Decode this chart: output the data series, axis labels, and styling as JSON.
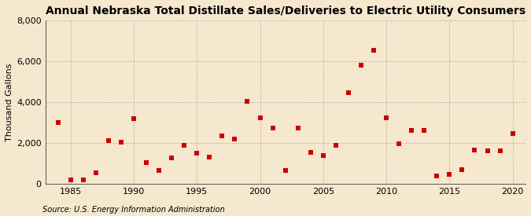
{
  "title": "Annual Nebraska Total Distillate Sales/Deliveries to Electric Utility Consumers",
  "ylabel": "Thousand Gallons",
  "source": "Source: U.S. Energy Information Administration",
  "years": [
    1984,
    1985,
    1986,
    1987,
    1988,
    1989,
    1990,
    1991,
    1992,
    1993,
    1994,
    1995,
    1996,
    1997,
    1998,
    1999,
    2000,
    2001,
    2002,
    2003,
    2004,
    2005,
    2006,
    2007,
    2008,
    2009,
    2010,
    2011,
    2012,
    2013,
    2014,
    2015,
    2016,
    2017,
    2018,
    2019,
    2020
  ],
  "values": [
    3000,
    200,
    200,
    550,
    2100,
    2050,
    3200,
    1050,
    650,
    1250,
    1900,
    1500,
    1300,
    2350,
    2200,
    4050,
    3250,
    2750,
    650,
    2750,
    1550,
    1400,
    1900,
    4450,
    5800,
    6550,
    3250,
    1950,
    2600,
    2600,
    400,
    450,
    700,
    1650,
    1600,
    1600,
    2450
  ],
  "background_color": "#f5e8ce",
  "plot_bg_color": "#f5e8ce",
  "marker_color": "#cc0000",
  "marker_size": 4,
  "grid_color": "#aaaaaa",
  "title_fontsize": 10,
  "label_fontsize": 8,
  "tick_fontsize": 8,
  "source_fontsize": 7,
  "ylim": [
    0,
    8000
  ],
  "yticks": [
    0,
    2000,
    4000,
    6000,
    8000
  ],
  "xlim": [
    1983,
    2021
  ],
  "xticks": [
    1985,
    1990,
    1995,
    2000,
    2005,
    2010,
    2015,
    2020
  ]
}
